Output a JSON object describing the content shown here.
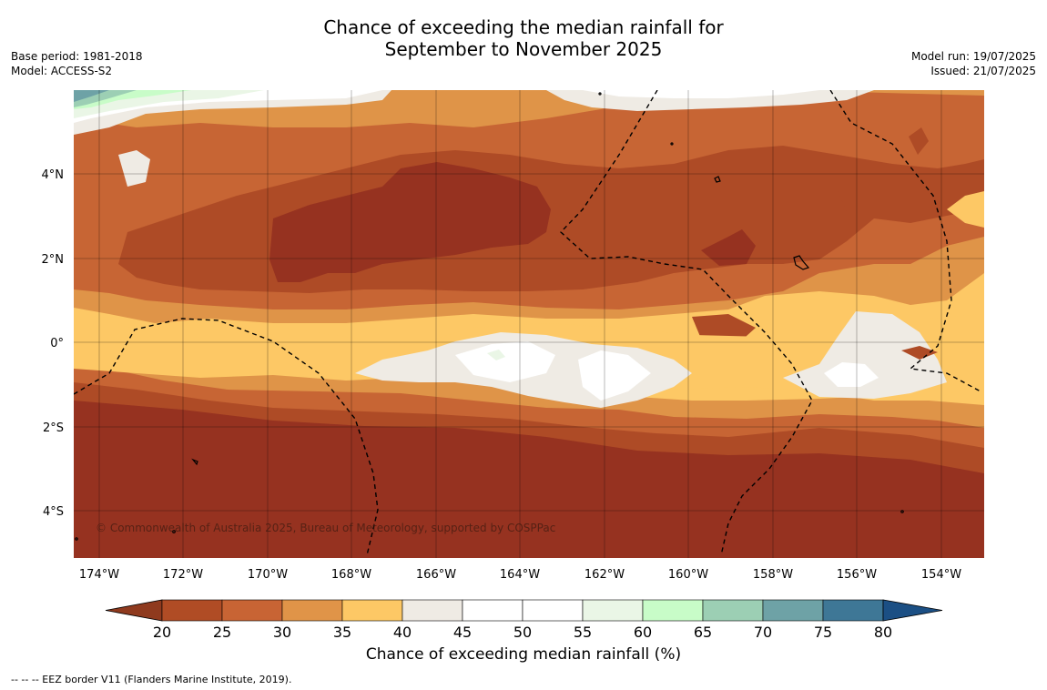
{
  "title_lines": [
    "Chance of exceeding the median rainfall for",
    "September to November 2025"
  ],
  "left_meta": [
    "Base period: 1981-2018",
    "Model: ACCESS-S2"
  ],
  "right_meta": [
    "Model run: 19/07/2025",
    "Issued: 21/07/2025"
  ],
  "copyright": "© Commonwealth of Australia 2025, Bureau of Meteorology, supported by COSPPac",
  "lat_labels": [
    "4°N",
    "2°N",
    "0°",
    "2°S",
    "4°S"
  ],
  "lon_labels": [
    "174°W",
    "172°W",
    "170°W",
    "168°W",
    "166°W",
    "164°W",
    "162°W",
    "160°W",
    "158°W",
    "156°W",
    "154°W"
  ],
  "colorbar": {
    "label": "Chance of exceeding median rainfall (%)",
    "ticks": [
      "20",
      "25",
      "30",
      "35",
      "40",
      "45",
      "50",
      "55",
      "60",
      "65",
      "70",
      "75",
      "80"
    ],
    "colors": [
      "#8f3a1e",
      "#b04c25",
      "#c86434",
      "#e09448",
      "#fdc865",
      "#efebe4",
      "#ffffff",
      "#ffffff",
      "#eaf6e6",
      "#c8fcc8",
      "#9ccfb4",
      "#6ea2a6",
      "#3e7796",
      "#1b4f84"
    ]
  },
  "footnote": "--  --  -- EEZ border V11 (Flanders Marine Institute, 2019).",
  "map_colors": {
    "c20": "#963220",
    "c25": "#ae4b26",
    "c30": "#c76534",
    "c35": "#df9448",
    "c40": "#fdc865",
    "c45": "#efebe4",
    "c50": "#ffffff",
    "c60": "#eaf6e6",
    "c65": "#c8fcc8",
    "c70": "#9ccfb4",
    "c75": "#6ea2a6"
  }
}
